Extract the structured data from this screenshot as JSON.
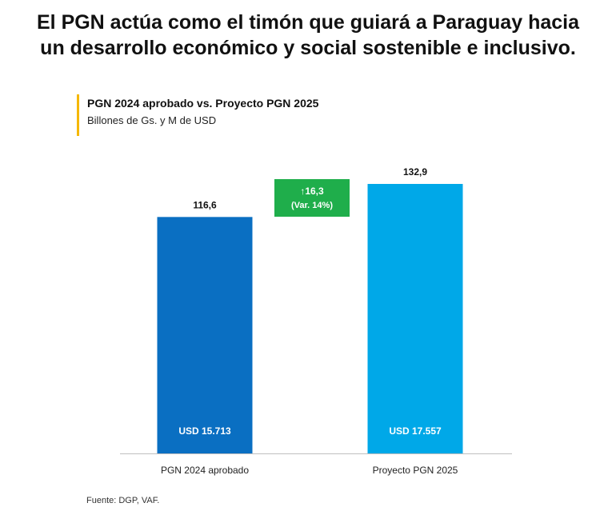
{
  "headline": {
    "line1": "El PGN actúa como el timón que guiará a Paraguay hacia",
    "line2": "un desarrollo económico y social sostenible e inclusivo."
  },
  "chart_data": {
    "type": "bar",
    "title": "PGN 2024 aprobado vs. Proyecto PGN 2025",
    "subtitle": "Billones de Gs. y M de USD",
    "categories": [
      "PGN 2024 aprobado",
      "Proyecto PGN 2025"
    ],
    "values": [
      116.6,
      132.9
    ],
    "value_labels": [
      "116,6",
      "132,9"
    ],
    "usd_labels": [
      "USD 15.713",
      "USD 17.557"
    ],
    "colors": [
      "#0a6fc2",
      "#00a8e8"
    ],
    "variation": {
      "line1": "↑16,3",
      "line2": "(Var. 14%)",
      "color": "#1fae4b"
    },
    "ylim": [
      0,
      140
    ],
    "grid": false,
    "legend": false
  },
  "source": "Fuente: DGP, VAF."
}
